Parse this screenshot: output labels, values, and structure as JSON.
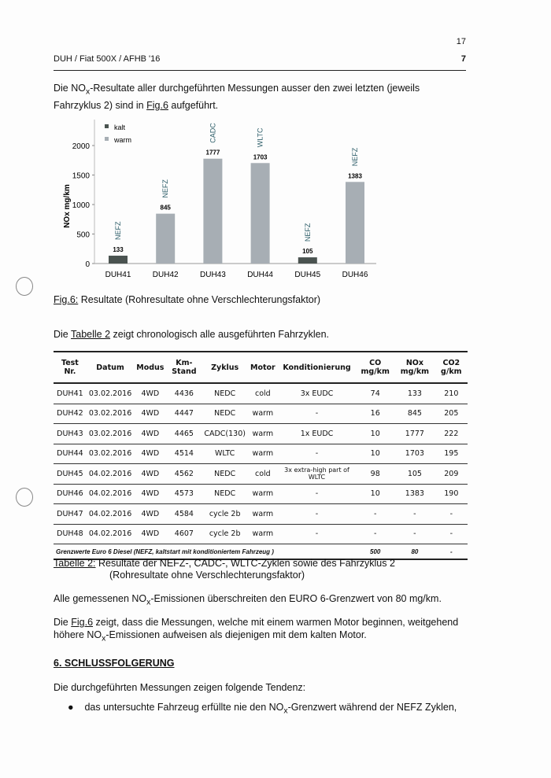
{
  "header": {
    "page_top": "17",
    "title": "DUH / Fiat 500X / AFHB '16",
    "page": "7"
  },
  "intro": {
    "pre": "Die NO",
    "sub": "x",
    "post": "-Resultate aller durchgeführten Messungen ausser den zwei letzten (jeweils Fahrzyklus 2) sind in ",
    "link": "Fig.6",
    "end": " aufgeführt."
  },
  "chart_data": {
    "type": "bar",
    "ylabel": "NOx mg/km",
    "ylim": [
      0,
      2300
    ],
    "yticks": [
      0,
      500,
      1000,
      1500,
      2000
    ],
    "categories": [
      "DUH41",
      "DUH42",
      "DUH43",
      "DUH44",
      "DUH45",
      "DUH46"
    ],
    "values": [
      133,
      845,
      1777,
      1703,
      105,
      1383
    ],
    "cycle_labels": [
      "NEFZ",
      "NEFZ",
      "CADC",
      "WLTC",
      "NEFZ",
      "NEFZ"
    ],
    "motor": [
      "kalt",
      "warm",
      "warm",
      "warm",
      "kalt",
      "warm"
    ],
    "legend": [
      {
        "name": "kalt",
        "color": "#4a5350"
      },
      {
        "name": "warm",
        "color": "#a7aeb4"
      }
    ],
    "legend_position": "top-left",
    "grid": false
  },
  "fig_caption": {
    "link": "Fig.6:",
    "text": " Resultate (Rohresultate ohne Verschlechterungsfaktor)"
  },
  "table_intro": {
    "pre": "Die ",
    "link": "Tabelle 2",
    "post": " zeigt chronologisch alle ausgeführten Fahrzyklen."
  },
  "table": {
    "headers": [
      "Test Nr.",
      "Datum",
      "Modus",
      "Km-Stand",
      "Zyklus",
      "Motor",
      "Konditionierung",
      "CO mg/km",
      "NOx mg/km",
      "CO2 g/km"
    ],
    "rows": [
      [
        "DUH41",
        "03.02.2016",
        "4WD",
        "4436",
        "NEDC",
        "cold",
        "3x EUDC",
        "74",
        "133",
        "210"
      ],
      [
        "DUH42",
        "03.02.2016",
        "4WD",
        "4447",
        "NEDC",
        "warm",
        "-",
        "16",
        "845",
        "205"
      ],
      [
        "DUH43",
        "03.02.2016",
        "4WD",
        "4465",
        "CADC(130)",
        "warm",
        "1x EUDC",
        "10",
        "1777",
        "222"
      ],
      [
        "DUH44",
        "03.02.2016",
        "4WD",
        "4514",
        "WLTC",
        "warm",
        "-",
        "10",
        "1703",
        "195"
      ],
      [
        "DUH45",
        "04.02.2016",
        "4WD",
        "4562",
        "NEDC",
        "cold",
        "3x extra-high part of WLTC",
        "98",
        "105",
        "209"
      ],
      [
        "DUH46",
        "04.02.2016",
        "4WD",
        "4573",
        "NEDC",
        "warm",
        "-",
        "10",
        "1383",
        "190"
      ],
      [
        "DUH47",
        "04.02.2016",
        "4WD",
        "4584",
        "cycle 2b",
        "warm",
        "-",
        "-",
        "-",
        "-"
      ],
      [
        "DUH48",
        "04.02.2016",
        "4WD",
        "4607",
        "cycle 2b",
        "warm",
        "-",
        "-",
        "-",
        "-"
      ]
    ],
    "footer": {
      "label": "Grenzwerte Euro 6 Diesel (NEFZ, kaltstart mit konditioniertem Fahrzeug )",
      "co": "500",
      "nox": "80",
      "co2": "-"
    }
  },
  "table_caption": {
    "link": "Tabelle 2:",
    "line1": " Resultate der NEFZ-, CADC-, WLTC-Zyklen sowie des Fahrzyklus 2",
    "line2": "(Rohresultate ohne Verschlechterungsfaktor)"
  },
  "para1": {
    "pre": "Alle gemessenen NO",
    "sub": "x",
    "post": "-Emissionen überschreiten den EURO 6-Grenzwert von 80 mg/km."
  },
  "para2": {
    "pre": "Die ",
    "link": "Fig.6",
    "mid": " zeigt, dass die Messungen, welche mit einem warmen Motor beginnen, weitgehend höhere NO",
    "sub": "x",
    "post": "-Emissionen aufweisen als diejenigen mit dem kalten Motor."
  },
  "section": {
    "heading": "6. SCHLUSSFOLGERUNG",
    "intro": "Die durchgeführten Messungen zeigen folgende Tendenz:"
  },
  "bullets": [
    {
      "pre": "das untersuchte Fahrzeug erfüllte nie den NO",
      "sub": "x",
      "post": "-Grenzwert während der NEFZ Zyklen,"
    }
  ]
}
